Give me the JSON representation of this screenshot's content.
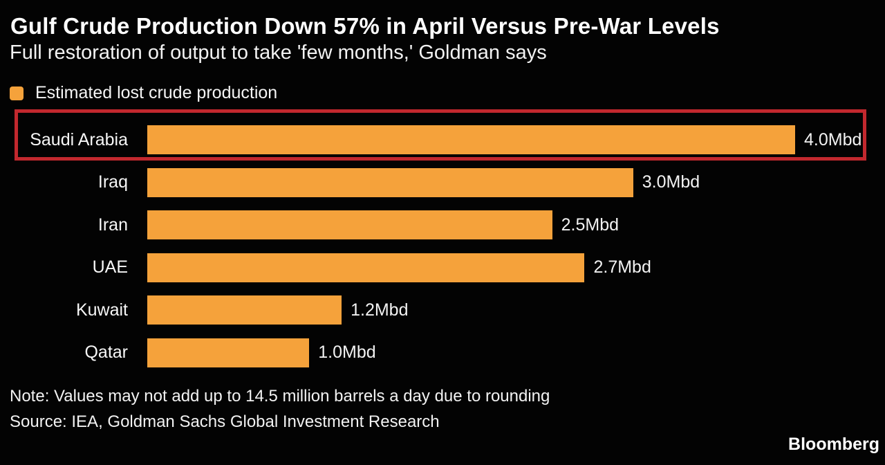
{
  "header": {
    "title": "Gulf Crude Production Down 57% in April Versus Pre-War Levels",
    "subtitle": "Full restoration of output to take 'few months,' Goldman says"
  },
  "legend": {
    "label": "Estimated lost crude production",
    "swatch_color": "#F5A23B"
  },
  "chart_data": {
    "type": "bar",
    "orientation": "horizontal",
    "title": "Gulf Crude Production Down 57% in April Versus Pre-War Levels",
    "unit": "Mbd",
    "categories": [
      "Saudi Arabia",
      "Iraq",
      "Iran",
      "UAE",
      "Kuwait",
      "Qatar"
    ],
    "values": [
      4.0,
      3.0,
      2.5,
      2.7,
      1.2,
      1.0
    ],
    "value_labels": [
      "4.0Mbd",
      "3.0Mbd",
      "2.5Mbd",
      "2.7Mbd",
      "1.2Mbd",
      "1.0Mbd"
    ],
    "xlim": [
      0,
      4.0
    ],
    "grid": false,
    "legend_position": "top-left",
    "bar_color": "#F5A23B",
    "highlighted_category": "Saudi Arabia",
    "highlight_box_color": "#C2282E"
  },
  "footer": {
    "note": "Note: Values may not add up to 14.5 million barrels a day due to rounding",
    "source": "Source: IEA, Goldman Sachs Global Investment Research",
    "brand": "Bloomberg"
  },
  "colors": {
    "background": "#030303",
    "text": "#ffffff",
    "bar": "#F5A23B",
    "highlight": "#C2282E"
  }
}
